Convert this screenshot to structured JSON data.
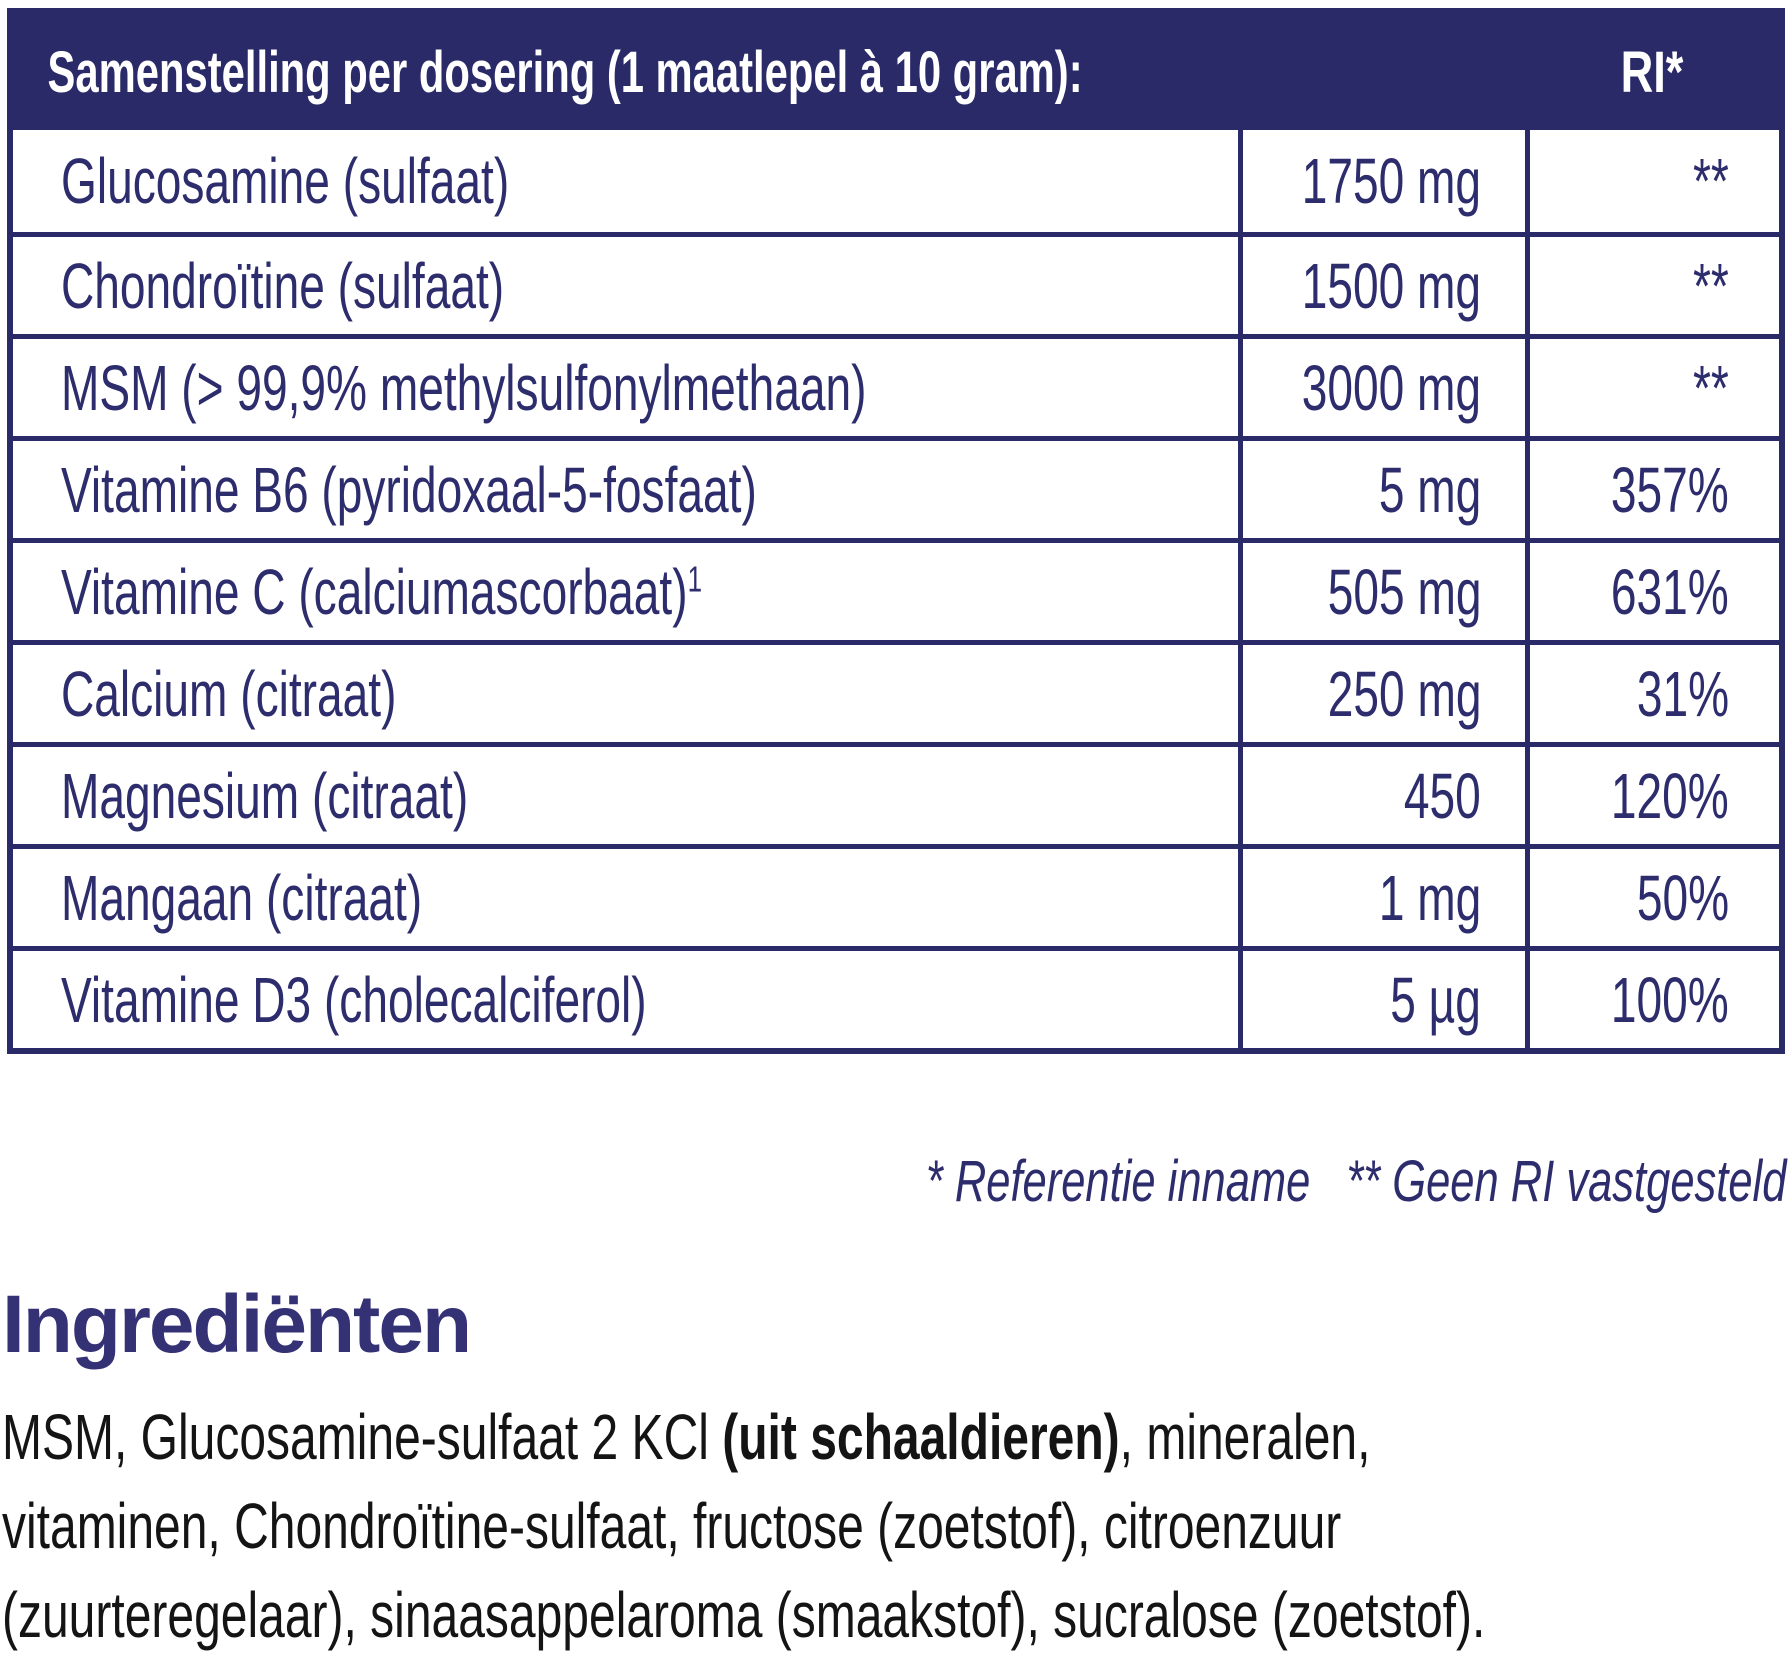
{
  "table": {
    "header": {
      "title": "Samenstelling per dosering (1 maatlepel à 10 gram):",
      "ri_label": "RI*"
    },
    "rows": [
      {
        "label": "Glucosamine (sulfaat)",
        "amount": "1750 mg",
        "ri": "**"
      },
      {
        "label": "Chondroïtine (sulfaat)",
        "amount": "1500 mg",
        "ri": "**"
      },
      {
        "label": "MSM (> 99,9% methylsulfonylmethaan)",
        "amount": "3000 mg",
        "ri": "**"
      },
      {
        "label": "Vitamine B6 (pyridoxaal-5-fosfaat)",
        "amount": "5 mg",
        "ri": "357%"
      },
      {
        "label": "Vitamine C (calciumascorbaat)",
        "label_sup": "1",
        "amount": "505 mg",
        "ri": "631%"
      },
      {
        "label": "Calcium (citraat)",
        "amount": "250 mg",
        "ri": "31%"
      },
      {
        "label": "Magnesium (citraat)",
        "amount": "450",
        "ri": "120%"
      },
      {
        "label": "Mangaan (citraat)",
        "amount": "1 mg",
        "ri": "50%"
      },
      {
        "label": "Vitamine D3 (cholecalciferol)",
        "amount": "5 µg",
        "ri": "100%"
      }
    ]
  },
  "footnote": {
    "part1": "* Referentie inname",
    "part2": "** Geen RI vastgesteld"
  },
  "ingredients": {
    "heading": "Ingrediënten",
    "line1_pre": "MSM, Glucosamine-sulfaat 2 KCl ",
    "line1_bold": "(uit schaaldieren)",
    "line1_post": ", mineralen,",
    "line2": "vitaminen, Chondroïtine-sulfaat, fructose (zoetstof), citroenzuur",
    "line3": "(zuurteregelaar), sinaasappelaroma (smaakstof), sucralose (zoetstof)."
  },
  "colors": {
    "navy_header": "#2a2a68",
    "table_text": "#2d2c6d",
    "heading_purple": "#343175",
    "body_text": "#141414",
    "background": "#ffffff"
  }
}
